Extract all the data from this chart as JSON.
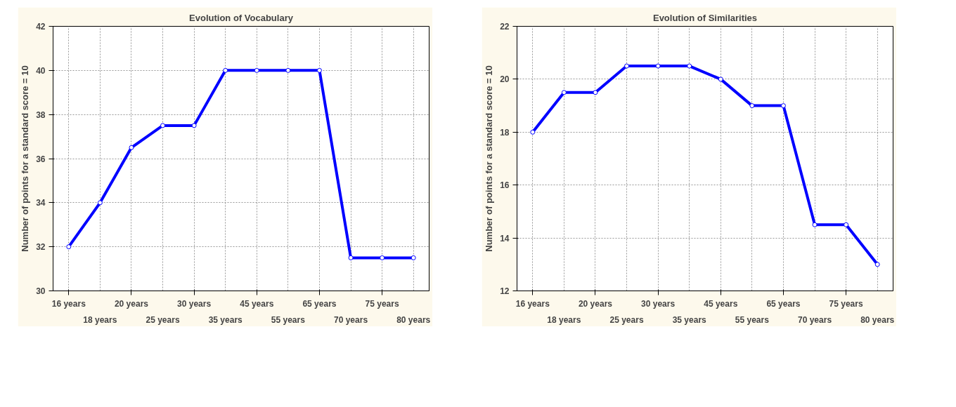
{
  "chart_data": [
    {
      "type": "line",
      "title": "Evolution of Vocabulary",
      "ylabel": "Number of points for a standard score = 10",
      "categories": [
        "16 years",
        "18 years",
        "20 years",
        "25 years",
        "30 years",
        "35 years",
        "45 years",
        "55 years",
        "65 years",
        "70 years",
        "75 years",
        "80 years"
      ],
      "values": [
        32,
        34,
        36.5,
        37.5,
        37.5,
        40,
        40,
        40,
        40,
        31.5,
        31.5,
        31.5
      ],
      "color": "#0000ff",
      "ylim": [
        30,
        42
      ],
      "yticks": [
        30,
        32,
        34,
        36,
        38,
        40,
        42
      ],
      "grid": true,
      "marker": "circle"
    },
    {
      "type": "line",
      "title": "Evolution of Similarities",
      "ylabel": "Number of points for a standard score = 10",
      "categories": [
        "16 years",
        "18 years",
        "20 years",
        "25 years",
        "30 years",
        "35 years",
        "45 years",
        "55 years",
        "65 years",
        "70 years",
        "75 years",
        "80 years"
      ],
      "values": [
        18,
        19.5,
        19.5,
        20.5,
        20.5,
        20.5,
        20,
        19,
        19,
        14.5,
        14.5,
        13
      ],
      "color": "#0000ff",
      "ylim": [
        12,
        22
      ],
      "yticks": [
        12,
        14,
        16,
        18,
        20,
        22
      ],
      "grid": true,
      "marker": "circle"
    }
  ]
}
